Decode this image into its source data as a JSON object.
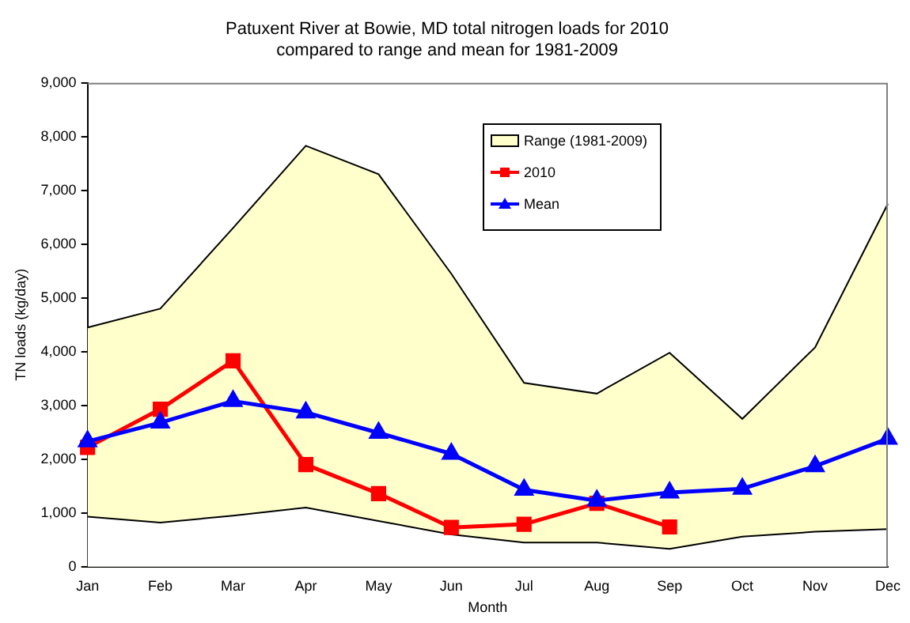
{
  "chart_data": {
    "type": "line",
    "title": "Patuxent River at Bowie, MD total nitrogen loads for 2010\ncompared to range and mean for 1981-2009",
    "xlabel": "Month",
    "ylabel": "TN loads (kg/day)",
    "categories": [
      "Jan",
      "Feb",
      "Mar",
      "Apr",
      "May",
      "Jun",
      "Jul",
      "Aug",
      "Sep",
      "Oct",
      "Nov",
      "Dec"
    ],
    "series": [
      {
        "name": "Range (1981-2009)",
        "type": "area",
        "color": "#ffffcc",
        "values": [
          4450,
          4800,
          6300,
          7830,
          7300,
          5450,
          3420,
          3220,
          3980,
          2750,
          4080,
          6750
        ]
      },
      {
        "type": "area",
        "color": "#ffffff",
        "values": [
          930,
          820,
          950,
          1100,
          850,
          600,
          450,
          450,
          330,
          560,
          650,
          700
        ]
      },
      {
        "name": "2010",
        "type": "line",
        "color": "#ff0000",
        "marker": "square",
        "values": [
          2220,
          2930,
          3830,
          1900,
          1360,
          730,
          790,
          1180,
          740,
          null,
          null,
          null
        ]
      },
      {
        "name": "Mean",
        "type": "line",
        "color": "#0000ff",
        "marker": "triangle",
        "values": [
          2330,
          2680,
          3080,
          2870,
          2490,
          2100,
          1430,
          1230,
          1380,
          1450,
          1870,
          2380
        ]
      }
    ],
    "ylim": [
      0,
      9000
    ],
    "yticks": [
      {
        "value": 0,
        "label": "0"
      },
      {
        "value": 1000,
        "label": "1,000"
      },
      {
        "value": 2000,
        "label": "2,000"
      },
      {
        "value": 3000,
        "label": "3,000"
      },
      {
        "value": 4000,
        "label": "4,000"
      },
      {
        "value": 5000,
        "label": "5,000"
      },
      {
        "value": 6000,
        "label": "6,000"
      },
      {
        "value": 7000,
        "label": "7,000"
      },
      {
        "value": 8000,
        "label": "8,000"
      },
      {
        "value": 9000,
        "label": "9,000"
      }
    ],
    "grid": false,
    "legend": "top"
  }
}
